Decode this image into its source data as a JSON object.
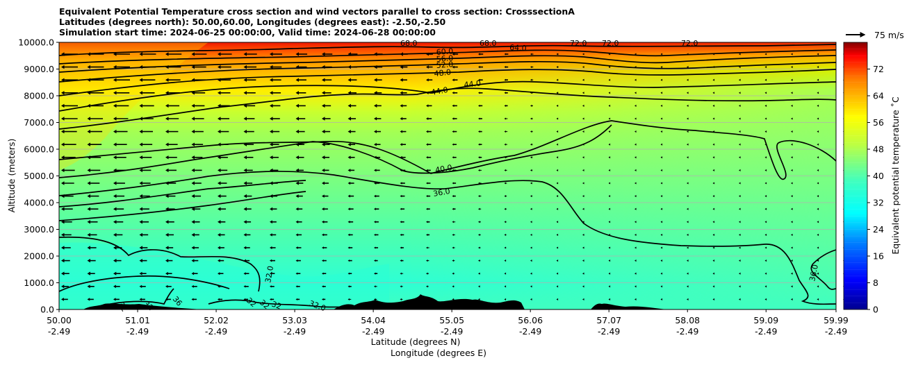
{
  "title_lines": [
    "Equivalent Potential Temperature cross section and wind vectors parallel to cross section: CrosssectionA",
    "Latitudes (degrees north): 50.00,60.00, Longitudes (degrees east): -2.50,-2.50",
    "Simulation start time: 2024-06-25 00:00:00, Valid time: 2024-06-28 00:00:00"
  ],
  "chart_data": {
    "type": "heatmap",
    "description_type": "contour cross-section with wind vectors",
    "xlabel_lat": "Latitude (degrees N)",
    "xlabel_lon": "Longitude (degrees E)",
    "ylabel": "Altitude (meters)",
    "ylim": [
      0,
      10000
    ],
    "xlim": [
      50.0,
      59.99
    ],
    "x_ticks": [
      {
        "lat": "50.00",
        "lon": "-2.49"
      },
      {
        "lat": "51.01",
        "lon": "-2.49"
      },
      {
        "lat": "52.02",
        "lon": "-2.49"
      },
      {
        "lat": "53.03",
        "lon": "-2.49"
      },
      {
        "lat": "54.04",
        "lon": "-2.49"
      },
      {
        "lat": "55.05",
        "lon": "-2.49"
      },
      {
        "lat": "56.06",
        "lon": "-2.49"
      },
      {
        "lat": "57.07",
        "lon": "-2.49"
      },
      {
        "lat": "58.08",
        "lon": "-2.49"
      },
      {
        "lat": "59.09",
        "lon": "-2.49"
      },
      {
        "lat": "59.99",
        "lon": "-2.49"
      }
    ],
    "y_ticks": [
      "0.0",
      "1000.0",
      "2000.0",
      "3000.0",
      "4000.0",
      "5000.0",
      "6000.0",
      "7000.0",
      "8000.0",
      "9000.0",
      "10000.0"
    ],
    "y_tick_values": [
      0,
      1000,
      2000,
      3000,
      4000,
      5000,
      6000,
      7000,
      8000,
      9000,
      10000
    ],
    "colorbar": {
      "label": "Equivalent potential temperature ˚C",
      "min": 0,
      "max": 80,
      "ticks": [
        "0",
        "8",
        "16",
        "24",
        "32",
        "40",
        "48",
        "56",
        "64",
        "72"
      ],
      "tick_values": [
        0,
        8,
        16,
        24,
        32,
        40,
        48,
        56,
        64,
        72
      ]
    },
    "quiver_key": "75 m/s",
    "contour_labels": [
      "60.0",
      "56.0",
      "52.0",
      "48.0",
      "44.0",
      "44.0",
      "64.0",
      "40.0",
      "36.0",
      "32.0",
      "36.0",
      "32",
      "32",
      "36",
      "32",
      "32",
      "32",
      "32.0",
      "68.0",
      "68.0",
      "72.0",
      "72.0",
      "72.0"
    ],
    "grid": true
  }
}
